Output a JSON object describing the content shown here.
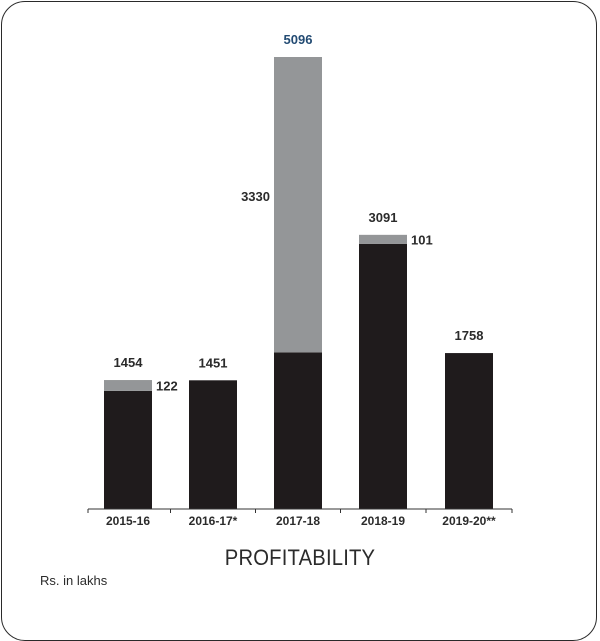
{
  "colors": {
    "base": "#1f1b1c",
    "top": "#949698",
    "text": "#2b2b2b",
    "highlight": "#234b73"
  },
  "chart_data": {
    "type": "bar",
    "stacked": true,
    "title": "PROFITABILITY",
    "unit": "Rs. in lakhs",
    "categories": [
      "2015-16",
      "2016-17*",
      "2017-18",
      "2018-19",
      "2019-20**"
    ],
    "series": [
      {
        "values": [
          1332,
          1451,
          1766,
          2990,
          1758
        ]
      },
      {
        "values": [
          122,
          0,
          3330,
          101,
          0
        ]
      }
    ],
    "totals": [
      1454,
      1451,
      5096,
      3091,
      1758
    ],
    "total_labels": [
      "1454",
      "1451",
      "5096",
      "3091",
      "1758"
    ],
    "segment_labels": [
      {
        "category": "2015-16",
        "text": "122",
        "side": "right"
      },
      {
        "category": "2017-18",
        "text": "3330",
        "side": "left"
      },
      {
        "category": "2018-19",
        "text": "101",
        "side": "right"
      }
    ],
    "highlight_total": "2017-18",
    "ylim": [
      0,
      5300
    ],
    "grid": false,
    "legend": "none"
  }
}
